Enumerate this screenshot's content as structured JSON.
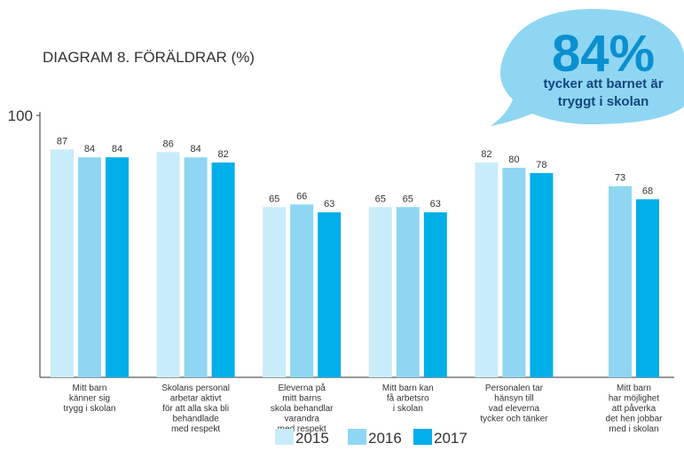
{
  "chart_data": {
    "type": "bar",
    "title": "DIAGRAM 8. FÖRÄLDRAR (%)",
    "annotation": {
      "headline": "84%",
      "lines": [
        "tycker att barnet är",
        "tryggt i skolan"
      ]
    },
    "categories": [
      [
        "Mitt barn",
        "känner sig",
        "trygg i skolan"
      ],
      [
        "Skolans personal",
        "arbetar aktivt",
        "för att alla ska bli",
        "behandlade",
        "med respekt"
      ],
      [
        "Eleverna på",
        "mitt barns",
        "skola behandlar",
        "varandra",
        "med respekt"
      ],
      [
        "Mitt barn kan",
        "få arbetsro",
        "i skolan"
      ],
      [
        "Personalen tar",
        "hänsyn till",
        "vad eleverna",
        "tycker och tänker"
      ],
      [
        "Mitt barn",
        "har möjlighet",
        "att påverka",
        "det hen jobbar",
        "med i skolan"
      ]
    ],
    "series": [
      {
        "name": "2015",
        "color": "#c9ecfa",
        "values": [
          87,
          86,
          65,
          65,
          82,
          null
        ]
      },
      {
        "name": "2016",
        "color": "#8fd6f2",
        "values": [
          84,
          84,
          66,
          65,
          80,
          73
        ]
      },
      {
        "name": "2017",
        "color": "#00aee8",
        "values": [
          84,
          82,
          63,
          63,
          78,
          68
        ]
      }
    ],
    "ylim": [
      0,
      100
    ],
    "yticks": [
      100
    ]
  }
}
